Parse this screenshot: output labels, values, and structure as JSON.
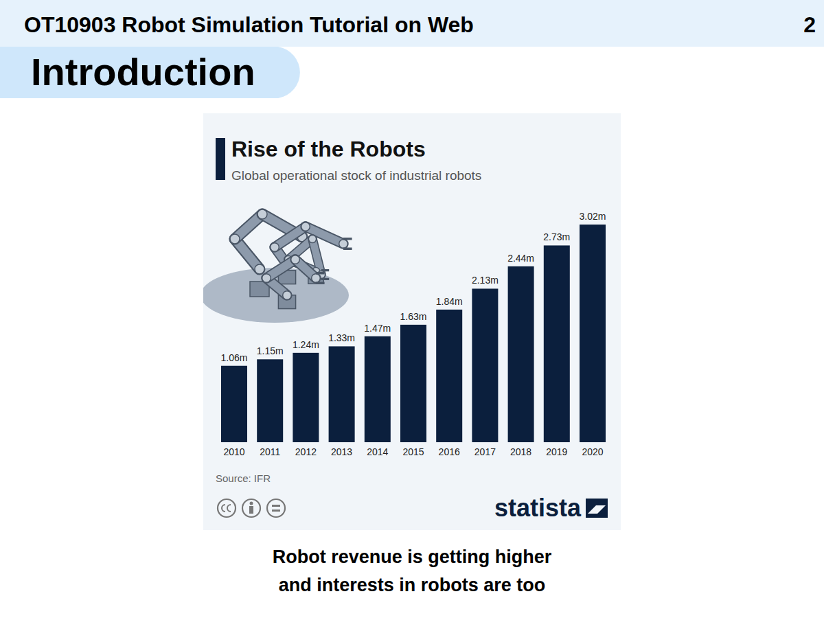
{
  "slide": {
    "header": "OT10903 Robot Simulation Tutorial on Web",
    "page": "2",
    "section": "Introduction",
    "caption": [
      "Robot revenue is getting higher",
      "and interests in robots are too"
    ]
  },
  "chart_data": {
    "type": "bar",
    "title": "Rise of the Robots",
    "subtitle": "Global operational stock of industrial robots",
    "categories": [
      "2010",
      "2011",
      "2012",
      "2013",
      "2014",
      "2015",
      "2016",
      "2017",
      "2018",
      "2019",
      "2020"
    ],
    "values": [
      1.06,
      1.15,
      1.24,
      1.33,
      1.47,
      1.63,
      1.84,
      2.13,
      2.44,
      2.73,
      3.02
    ],
    "value_labels": [
      "1.06m",
      "1.15m",
      "1.24m",
      "1.33m",
      "1.47m",
      "1.63m",
      "1.84m",
      "2.13m",
      "2.44m",
      "2.73m",
      "3.02m"
    ],
    "color": "#0b1f3d",
    "ylim": [
      0,
      3.02
    ],
    "data_labels": true,
    "tick_labels": "x",
    "grid": false,
    "source": "Source: IFR",
    "brand": "statista"
  }
}
